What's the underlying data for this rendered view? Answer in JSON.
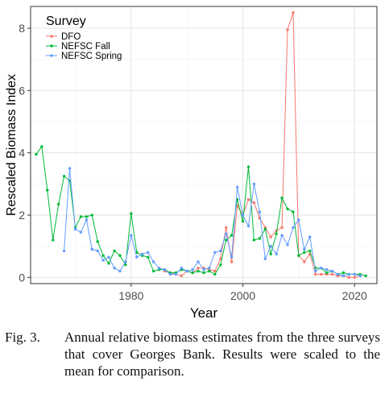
{
  "chart_data": {
    "type": "line",
    "xlabel": "Year",
    "ylabel": "Rescaled Biomass Index",
    "xlim": [
      1962,
      2024
    ],
    "ylim": [
      -0.2,
      8.7
    ],
    "x_ticks": [
      1980,
      2000,
      2020
    ],
    "y_ticks": [
      0,
      2,
      4,
      6,
      8
    ],
    "grid": true,
    "legend": {
      "title": "Survey",
      "position": "top-left"
    },
    "series": [
      {
        "name": "DFO",
        "color": "#F8766D",
        "x": [
          1986,
          1987,
          1988,
          1989,
          1990,
          1991,
          1992,
          1993,
          1994,
          1995,
          1996,
          1997,
          1998,
          1999,
          2000,
          2001,
          2002,
          2003,
          2004,
          2005,
          2006,
          2007,
          2008,
          2009,
          2010,
          2011,
          2012,
          2013,
          2014,
          2015,
          2016,
          2017,
          2018,
          2019,
          2020,
          2021
        ],
        "values": [
          0.2,
          0.15,
          0.1,
          0.05,
          0.2,
          0.15,
          0.3,
          0.3,
          0.25,
          0.2,
          0.6,
          1.6,
          0.5,
          2.3,
          2.0,
          2.5,
          2.4,
          1.9,
          1.6,
          1.3,
          1.5,
          1.6,
          7.95,
          8.5,
          0.7,
          0.5,
          0.75,
          0.1,
          0.1,
          0.1,
          0.1,
          0.05,
          0.05,
          0.0,
          0.0,
          0.05
        ]
      },
      {
        "name": "NEFSC Fall",
        "color": "#00BA38",
        "x": [
          1963,
          1964,
          1965,
          1966,
          1967,
          1968,
          1969,
          1970,
          1971,
          1972,
          1973,
          1974,
          1975,
          1976,
          1977,
          1978,
          1979,
          1980,
          1981,
          1982,
          1983,
          1984,
          1985,
          1986,
          1987,
          1988,
          1989,
          1990,
          1991,
          1992,
          1993,
          1994,
          1995,
          1996,
          1997,
          1998,
          1999,
          2000,
          2001,
          2002,
          2003,
          2004,
          2005,
          2006,
          2007,
          2008,
          2009,
          2010,
          2011,
          2012,
          2013,
          2014,
          2015,
          2016,
          2017,
          2018,
          2019,
          2020,
          2021,
          2022
        ],
        "values": [
          3.95,
          4.2,
          2.8,
          1.2,
          2.35,
          3.25,
          3.1,
          1.6,
          1.95,
          1.95,
          2.0,
          1.15,
          0.7,
          0.45,
          0.85,
          0.7,
          0.4,
          2.05,
          0.8,
          0.7,
          0.65,
          0.2,
          0.25,
          0.25,
          0.15,
          0.15,
          0.25,
          0.2,
          0.15,
          0.2,
          0.15,
          0.2,
          0.1,
          0.4,
          1.2,
          1.35,
          2.5,
          1.8,
          3.55,
          1.2,
          1.25,
          1.55,
          0.75,
          1.4,
          2.55,
          2.2,
          2.1,
          0.7,
          0.8,
          0.85,
          0.3,
          0.3,
          0.15,
          0.2,
          0.1,
          0.15,
          0.1,
          0.1,
          0.1,
          0.05
        ]
      },
      {
        "name": "NEFSC Spring",
        "color": "#619CFF",
        "x": [
          1968,
          1969,
          1970,
          1971,
          1972,
          1973,
          1974,
          1975,
          1976,
          1977,
          1978,
          1979,
          1980,
          1981,
          1982,
          1983,
          1984,
          1985,
          1986,
          1987,
          1988,
          1989,
          1990,
          1991,
          1992,
          1993,
          1994,
          1995,
          1996,
          1997,
          1998,
          1999,
          2000,
          2001,
          2002,
          2003,
          2004,
          2005,
          2006,
          2007,
          2008,
          2009,
          2010,
          2011,
          2012,
          2013,
          2014,
          2015,
          2016,
          2017,
          2018,
          2019,
          2020,
          2021
        ],
        "values": [
          0.85,
          3.5,
          1.55,
          1.45,
          1.85,
          0.9,
          0.85,
          0.55,
          0.65,
          0.3,
          0.2,
          0.5,
          1.35,
          0.65,
          0.75,
          0.8,
          0.5,
          0.3,
          0.25,
          0.1,
          0.1,
          0.3,
          0.2,
          0.25,
          0.5,
          0.25,
          0.3,
          0.8,
          0.85,
          1.4,
          0.65,
          2.9,
          2.0,
          1.65,
          3.0,
          2.1,
          0.6,
          1.0,
          0.75,
          1.35,
          1.05,
          1.6,
          1.85,
          0.9,
          1.3,
          0.2,
          0.3,
          0.25,
          0.2,
          0.1,
          0.05,
          0.1,
          0.1,
          0.05
        ]
      }
    ]
  },
  "caption": {
    "label": "Fig. 3.",
    "text": "Annual relative biomass estimates from the three surveys that cover Georges Bank. Results were scaled to the mean for comparison."
  }
}
